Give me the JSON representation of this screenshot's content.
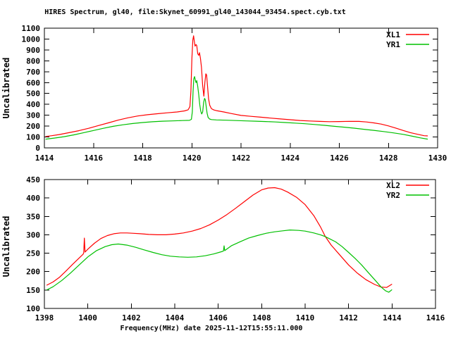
{
  "title": "HIRES Spectrum, gl40, file:Skynet_60991_gl40_143044_93454.spect.cyb.txt",
  "colors": {
    "background": "#ffffff",
    "axis": "#000000",
    "series_red": "#ff0000",
    "series_green": "#00c000"
  },
  "chart_data": [
    {
      "type": "line",
      "title": "",
      "xlabel": "",
      "ylabel": "Uncalibrated",
      "xlim": [
        1414,
        1430
      ],
      "ylim": [
        0,
        1100
      ],
      "xticks": [
        1414,
        1416,
        1418,
        1420,
        1422,
        1424,
        1426,
        1428,
        1430
      ],
      "yticks": [
        0,
        100,
        200,
        300,
        400,
        500,
        600,
        700,
        800,
        900,
        1000,
        1100
      ],
      "grid": false,
      "legend_position": "top-right-inside",
      "series": [
        {
          "name": "XL1",
          "color": "#ff0000",
          "points": [
            [
              1414.05,
              105
            ],
            [
              1414.3,
              112
            ],
            [
              1414.6,
              122
            ],
            [
              1415.0,
              140
            ],
            [
              1415.4,
              158
            ],
            [
              1415.8,
              180
            ],
            [
              1416.2,
              205
            ],
            [
              1416.6,
              230
            ],
            [
              1417.0,
              255
            ],
            [
              1417.4,
              276
            ],
            [
              1417.8,
              293
            ],
            [
              1418.2,
              305
            ],
            [
              1418.6,
              314
            ],
            [
              1419.0,
              322
            ],
            [
              1419.4,
              330
            ],
            [
              1419.7,
              340
            ],
            [
              1419.85,
              350
            ],
            [
              1419.92,
              380
            ],
            [
              1419.96,
              520
            ],
            [
              1420.0,
              820
            ],
            [
              1420.04,
              990
            ],
            [
              1420.07,
              1030
            ],
            [
              1420.1,
              980
            ],
            [
              1420.13,
              935
            ],
            [
              1420.17,
              950
            ],
            [
              1420.2,
              940
            ],
            [
              1420.24,
              865
            ],
            [
              1420.28,
              850
            ],
            [
              1420.31,
              875
            ],
            [
              1420.35,
              820
            ],
            [
              1420.39,
              740
            ],
            [
              1420.44,
              570
            ],
            [
              1420.49,
              475
            ],
            [
              1420.53,
              600
            ],
            [
              1420.57,
              680
            ],
            [
              1420.6,
              670
            ],
            [
              1420.64,
              560
            ],
            [
              1420.68,
              450
            ],
            [
              1420.73,
              390
            ],
            [
              1420.8,
              360
            ],
            [
              1420.9,
              348
            ],
            [
              1421.0,
              342
            ],
            [
              1421.3,
              330
            ],
            [
              1421.6,
              316
            ],
            [
              1422.0,
              298
            ],
            [
              1422.4,
              290
            ],
            [
              1422.8,
              282
            ],
            [
              1423.2,
              274
            ],
            [
              1423.6,
              266
            ],
            [
              1424.0,
              259
            ],
            [
              1424.4,
              252
            ],
            [
              1424.8,
              247
            ],
            [
              1425.2,
              243
            ],
            [
              1425.6,
              241
            ],
            [
              1426.0,
              242
            ],
            [
              1426.4,
              244
            ],
            [
              1426.8,
              243
            ],
            [
              1427.1,
              238
            ],
            [
              1427.4,
              230
            ],
            [
              1427.7,
              219
            ],
            [
              1428.0,
              202
            ],
            [
              1428.3,
              182
            ],
            [
              1428.6,
              160
            ],
            [
              1428.9,
              140
            ],
            [
              1429.2,
              124
            ],
            [
              1429.45,
              112
            ],
            [
              1429.6,
              110
            ]
          ]
        },
        {
          "name": "YR1",
          "color": "#00c000",
          "points": [
            [
              1414.05,
              80
            ],
            [
              1414.4,
              90
            ],
            [
              1414.8,
              103
            ],
            [
              1415.2,
              120
            ],
            [
              1415.6,
              140
            ],
            [
              1416.0,
              160
            ],
            [
              1416.4,
              180
            ],
            [
              1416.8,
              198
            ],
            [
              1417.2,
              212
            ],
            [
              1417.6,
              224
            ],
            [
              1418.0,
              233
            ],
            [
              1418.4,
              240
            ],
            [
              1418.8,
              245
            ],
            [
              1419.2,
              248
            ],
            [
              1419.6,
              251
            ],
            [
              1419.9,
              253
            ],
            [
              1419.98,
              262
            ],
            [
              1420.02,
              330
            ],
            [
              1420.05,
              520
            ],
            [
              1420.08,
              635
            ],
            [
              1420.11,
              655
            ],
            [
              1420.14,
              625
            ],
            [
              1420.17,
              600
            ],
            [
              1420.2,
              618
            ],
            [
              1420.24,
              565
            ],
            [
              1420.28,
              490
            ],
            [
              1420.32,
              400
            ],
            [
              1420.36,
              340
            ],
            [
              1420.4,
              312
            ],
            [
              1420.44,
              330
            ],
            [
              1420.48,
              420
            ],
            [
              1420.52,
              455
            ],
            [
              1420.55,
              440
            ],
            [
              1420.58,
              385
            ],
            [
              1420.62,
              318
            ],
            [
              1420.66,
              280
            ],
            [
              1420.72,
              265
            ],
            [
              1420.8,
              260
            ],
            [
              1421.0,
              257
            ],
            [
              1421.4,
              254
            ],
            [
              1421.8,
              251
            ],
            [
              1422.2,
              248
            ],
            [
              1422.6,
              245
            ],
            [
              1423.0,
              242
            ],
            [
              1423.4,
              238
            ],
            [
              1423.8,
              233
            ],
            [
              1424.2,
              228
            ],
            [
              1424.6,
              222
            ],
            [
              1425.0,
              215
            ],
            [
              1425.4,
              207
            ],
            [
              1425.8,
              198
            ],
            [
              1426.2,
              190
            ],
            [
              1426.6,
              181
            ],
            [
              1427.0,
              171
            ],
            [
              1427.4,
              161
            ],
            [
              1427.8,
              150
            ],
            [
              1428.2,
              138
            ],
            [
              1428.6,
              124
            ],
            [
              1429.0,
              106
            ],
            [
              1429.3,
              92
            ],
            [
              1429.6,
              80
            ]
          ]
        }
      ]
    },
    {
      "type": "line",
      "title": "",
      "xlabel": "Frequency(MHz) date 2025-11-12T15:55:11.000",
      "ylabel": "Uncalibrated",
      "xlim": [
        1398,
        1416
      ],
      "ylim": [
        100,
        450
      ],
      "xticks": [
        1398,
        1400,
        1402,
        1404,
        1406,
        1408,
        1410,
        1412,
        1414,
        1416
      ],
      "yticks": [
        100,
        150,
        200,
        250,
        300,
        350,
        400,
        450
      ],
      "grid": false,
      "legend_position": "top-right-inside",
      "series": [
        {
          "name": "XL2",
          "color": "#ff0000",
          "points": [
            [
              1398.1,
              163
            ],
            [
              1398.4,
              172
            ],
            [
              1398.7,
              185
            ],
            [
              1399.0,
              202
            ],
            [
              1399.3,
              220
            ],
            [
              1399.6,
              237
            ],
            [
              1399.78,
              247
            ],
            [
              1399.81,
              251
            ],
            [
              1399.84,
              291
            ],
            [
              1399.87,
              253
            ],
            [
              1400.0,
              261
            ],
            [
              1400.3,
              277
            ],
            [
              1400.6,
              290
            ],
            [
              1400.9,
              298
            ],
            [
              1401.2,
              303
            ],
            [
              1401.5,
              305
            ],
            [
              1401.8,
              305
            ],
            [
              1402.1,
              304
            ],
            [
              1402.4,
              303
            ],
            [
              1402.8,
              301
            ],
            [
              1403.2,
              300
            ],
            [
              1403.6,
              300
            ],
            [
              1404.0,
              302
            ],
            [
              1404.4,
              305
            ],
            [
              1404.8,
              310
            ],
            [
              1405.2,
              317
            ],
            [
              1405.6,
              327
            ],
            [
              1406.0,
              340
            ],
            [
              1406.4,
              355
            ],
            [
              1406.8,
              372
            ],
            [
              1407.2,
              390
            ],
            [
              1407.6,
              408
            ],
            [
              1408.0,
              422
            ],
            [
              1408.3,
              427
            ],
            [
              1408.6,
              428
            ],
            [
              1408.9,
              424
            ],
            [
              1409.2,
              416
            ],
            [
              1409.6,
              402
            ],
            [
              1410.0,
              382
            ],
            [
              1410.4,
              352
            ],
            [
              1410.7,
              322
            ],
            [
              1410.93,
              295
            ],
            [
              1411.2,
              272
            ],
            [
              1411.6,
              245
            ],
            [
              1412.0,
              218
            ],
            [
              1412.4,
              196
            ],
            [
              1412.8,
              178
            ],
            [
              1413.2,
              165
            ],
            [
              1413.5,
              158
            ],
            [
              1413.75,
              157
            ],
            [
              1414.0,
              166
            ]
          ]
        },
        {
          "name": "YR2",
          "color": "#00c000",
          "points": [
            [
              1398.1,
              150
            ],
            [
              1398.4,
              159
            ],
            [
              1398.8,
              176
            ],
            [
              1399.2,
              196
            ],
            [
              1399.6,
              218
            ],
            [
              1400.0,
              240
            ],
            [
              1400.4,
              257
            ],
            [
              1400.8,
              268
            ],
            [
              1401.1,
              273
            ],
            [
              1401.4,
              275
            ],
            [
              1401.8,
              272
            ],
            [
              1402.2,
              266
            ],
            [
              1402.6,
              259
            ],
            [
              1403.0,
              252
            ],
            [
              1403.4,
              246
            ],
            [
              1403.8,
              242
            ],
            [
              1404.2,
              240
            ],
            [
              1404.6,
              239
            ],
            [
              1405.0,
              240
            ],
            [
              1405.4,
              243
            ],
            [
              1405.8,
              248
            ],
            [
              1406.2,
              255
            ],
            [
              1406.24,
              256
            ],
            [
              1406.27,
              270
            ],
            [
              1406.3,
              257
            ],
            [
              1406.6,
              270
            ],
            [
              1407.0,
              281
            ],
            [
              1407.4,
              291
            ],
            [
              1407.8,
              298
            ],
            [
              1408.2,
              304
            ],
            [
              1408.6,
              308
            ],
            [
              1409.0,
              311
            ],
            [
              1409.3,
              313
            ],
            [
              1409.7,
              312
            ],
            [
              1410.0,
              310
            ],
            [
              1410.4,
              305
            ],
            [
              1410.7,
              300
            ],
            [
              1410.93,
              295
            ],
            [
              1411.1,
              290
            ],
            [
              1411.4,
              281
            ],
            [
              1411.7,
              268
            ],
            [
              1412.0,
              252
            ],
            [
              1412.3,
              236
            ],
            [
              1412.6,
              218
            ],
            [
              1412.9,
              198
            ],
            [
              1413.2,
              178
            ],
            [
              1413.5,
              158
            ],
            [
              1413.7,
              148
            ],
            [
              1413.85,
              144
            ],
            [
              1414.0,
              151
            ]
          ]
        }
      ]
    }
  ]
}
